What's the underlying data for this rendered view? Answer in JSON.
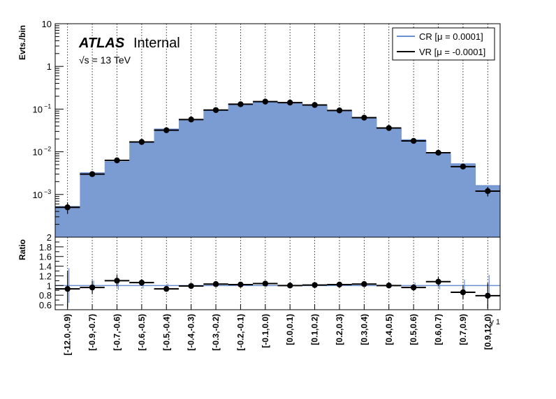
{
  "chart_data": {
    "type": "bar",
    "atlas_label": "ATLAS",
    "status_label": "Internal",
    "energy_label": "√s = 13 TeV",
    "ylabel": "Evts./bin",
    "ratio_ylabel": "Ratio",
    "xlabel": "γ 1",
    "log_y": true,
    "ylim": [
      0.0001,
      10
    ],
    "ratio_ylim": [
      0.5,
      2.0
    ],
    "grid_x": true,
    "legend_position": "top-right",
    "colors": {
      "cr_fill": "#7b9bd3",
      "cr_line": "#6a8fcf",
      "vr": "#000000"
    },
    "categories": [
      "[-12.0,-0.9)",
      "[-0.9,-0.7)",
      "[-0.7,-0.6)",
      "[-0.6,-0.5)",
      "[-0.5,-0.4)",
      "[-0.4,-0.3)",
      "[-0.3,-0.2)",
      "[-0.2,-0.1)",
      "[-0.1,0.0)",
      "[0.0,0.1)",
      "[0.1,0.2)",
      "[0.2,0.3)",
      "[0.3,0.4)",
      "[0.4,0.5)",
      "[0.5,0.6)",
      "[0.6,0.7)",
      "[0.7,0.9)",
      "[0.9,12.0)"
    ],
    "y_ticks": [
      {
        "value": 10,
        "label": "10"
      },
      {
        "value": 1,
        "label": "1"
      },
      {
        "value": 0.1,
        "label": "10",
        "exp": "−1"
      },
      {
        "value": 0.01,
        "label": "10",
        "exp": "−2"
      },
      {
        "value": 0.001,
        "label": "10",
        "exp": "−3"
      }
    ],
    "ratio_ticks": [
      "0.6",
      "0.8",
      "1",
      "1.2",
      "1.4",
      "1.6",
      "1.8",
      "2"
    ],
    "series": [
      {
        "name": "CR [μ = 0.0001]",
        "style": "filled-histogram",
        "values": [
          0.00052,
          0.0032,
          0.0058,
          0.0165,
          0.034,
          0.057,
          0.093,
          0.128,
          0.144,
          0.141,
          0.123,
          0.093,
          0.061,
          0.036,
          0.019,
          0.0088,
          0.0052,
          0.0016
        ]
      },
      {
        "name": "VR [μ = -0.0001]",
        "style": "points-with-errors",
        "values": [
          0.0005,
          0.003,
          0.0063,
          0.017,
          0.032,
          0.057,
          0.095,
          0.13,
          0.15,
          0.142,
          0.125,
          0.093,
          0.063,
          0.036,
          0.018,
          0.0095,
          0.0045,
          0.0012
        ],
        "errors_low": [
          0.00015,
          0.0003,
          0.0006,
          0.0013,
          0.002,
          0.003,
          0.004,
          0.005,
          0.005,
          0.005,
          0.005,
          0.004,
          0.003,
          0.002,
          0.0013,
          0.0009,
          0.0006,
          0.0003
        ],
        "errors_high": [
          0.00015,
          0.0003,
          0.0006,
          0.0013,
          0.002,
          0.003,
          0.004,
          0.005,
          0.005,
          0.005,
          0.005,
          0.004,
          0.003,
          0.002,
          0.0013,
          0.0009,
          0.0006,
          0.0003
        ]
      }
    ],
    "ratio": {
      "values": [
        0.93,
        0.96,
        1.1,
        1.06,
        0.93,
        0.99,
        1.03,
        1.02,
        1.04,
        1.0,
        1.01,
        1.02,
        1.03,
        1.0,
        0.96,
        1.08,
        0.86,
        0.79
      ],
      "errors": [
        0.38,
        0.14,
        0.12,
        0.07,
        0.05,
        0.04,
        0.04,
        0.03,
        0.03,
        0.03,
        0.03,
        0.03,
        0.04,
        0.05,
        0.07,
        0.1,
        0.14,
        0.26
      ],
      "reference_errors": [
        0.36,
        0.1,
        0.09,
        0.06,
        0.04,
        0.03,
        0.03,
        0.03,
        0.03,
        0.03,
        0.03,
        0.03,
        0.03,
        0.04,
        0.06,
        0.08,
        0.12,
        0.22
      ]
    }
  }
}
